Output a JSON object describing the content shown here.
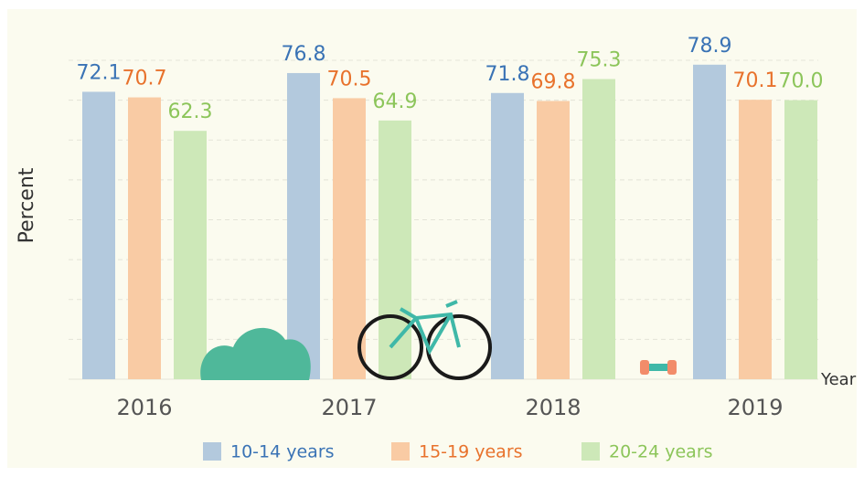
{
  "chart_data": {
    "type": "bar",
    "x_label": "Year",
    "y_label": "Percent",
    "categories": [
      "2016",
      "2017",
      "2018",
      "2019"
    ],
    "series": [
      {
        "name": "10-14 years",
        "color": "#b3c9dd",
        "label_color": "#3a73b5",
        "values": [
          72.1,
          76.8,
          71.8,
          78.9
        ]
      },
      {
        "name": "15-19 years",
        "color": "#f9cba4",
        "label_color": "#e8722c",
        "values": [
          70.7,
          70.5,
          69.8,
          70.1
        ]
      },
      {
        "name": "20-24 years",
        "color": "#cde8b8",
        "label_color": "#8cc55a",
        "values": [
          62.3,
          64.9,
          75.3,
          70.0
        ],
        "value_labels": [
          "62.3",
          "64.9",
          "75.3",
          "70.0"
        ]
      }
    ],
    "ylim": [
      0,
      80
    ],
    "yticks": [
      10,
      20,
      30,
      40,
      50,
      60,
      70,
      80
    ],
    "grid": true,
    "legend": "bottom"
  }
}
